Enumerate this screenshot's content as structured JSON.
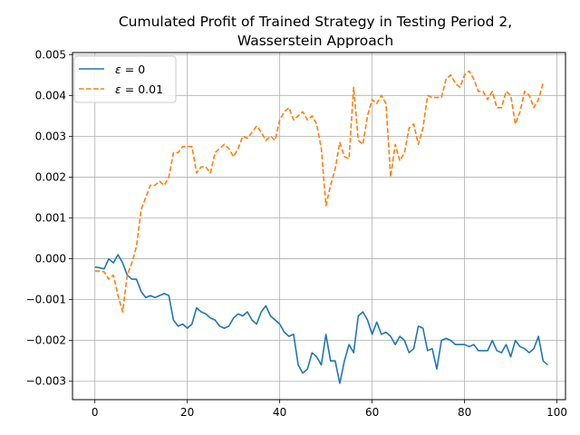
{
  "chart_data": {
    "type": "line",
    "title_line1": "Cumulated Profit of Trained Strategy in Testing Period 2,",
    "title_line2": "Wasserstein Approach",
    "xlabel": "",
    "ylabel": "",
    "xlim": [
      -4.85,
      101.85
    ],
    "ylim": [
      -0.00345,
      0.00505
    ],
    "xticks": [
      0,
      20,
      40,
      60,
      80,
      100
    ],
    "xtick_labels": [
      "0",
      "20",
      "40",
      "60",
      "80",
      "100"
    ],
    "yticks": [
      -0.003,
      -0.002,
      -0.001,
      0.0,
      0.001,
      0.002,
      0.003,
      0.004,
      0.005
    ],
    "ytick_labels": [
      "−0.003",
      "−0.002",
      "−0.001",
      "0.000",
      "0.001",
      "0.002",
      "0.003",
      "0.004",
      "0.005"
    ],
    "grid": true,
    "legend_position": "top-left",
    "series": [
      {
        "name": "ε = 0",
        "legend_prefix": "ε",
        "legend_suffix": "= 0",
        "color": "#1f77b4",
        "dash": "solid",
        "values": [
          -0.0002,
          -0.00022,
          -0.00025,
          0.0,
          -0.0001,
          0.0001,
          -0.0001,
          -0.0004,
          -0.0005,
          -0.0005,
          -0.0008,
          -0.00095,
          -0.0009,
          -0.00095,
          -0.0009,
          -0.00085,
          -0.0009,
          -0.0015,
          -0.00165,
          -0.0016,
          -0.0017,
          -0.0016,
          -0.0012,
          -0.0013,
          -0.00135,
          -0.00145,
          -0.0015,
          -0.00165,
          -0.0017,
          -0.00165,
          -0.00145,
          -0.00135,
          -0.0014,
          -0.0013,
          -0.0015,
          -0.0016,
          -0.0013,
          -0.00115,
          -0.0014,
          -0.0015,
          -0.0016,
          -0.0018,
          -0.0019,
          -0.00185,
          -0.0026,
          -0.0028,
          -0.0027,
          -0.0023,
          -0.0024,
          -0.0026,
          -0.00185,
          -0.0025,
          -0.0025,
          -0.00305,
          -0.0025,
          -0.0021,
          -0.0023,
          -0.0014,
          -0.0013,
          -0.0015,
          -0.00185,
          -0.00155,
          -0.00185,
          -0.0018,
          -0.0019,
          -0.0021,
          -0.0019,
          -0.002,
          -0.0023,
          -0.0022,
          -0.00165,
          -0.0017,
          -0.00225,
          -0.0022,
          -0.0027,
          -0.002,
          -0.00195,
          -0.002,
          -0.0021,
          -0.0021,
          -0.0021,
          -0.00215,
          -0.0021,
          -0.00225,
          -0.00225,
          -0.00225,
          -0.002,
          -0.00225,
          -0.0023,
          -0.0021,
          -0.0024,
          -0.002,
          -0.00215,
          -0.0022,
          -0.0023,
          -0.0022,
          -0.0019,
          -0.0025,
          -0.0026
        ]
      },
      {
        "name": "ε = 0.01",
        "legend_prefix": "ε",
        "legend_suffix": "= 0.01",
        "color": "#ff7f0e",
        "dash": "dashed",
        "values": [
          -0.0003,
          -0.0003,
          -0.00032,
          -0.0005,
          -0.0004,
          -0.0009,
          -0.0013,
          -0.0004,
          -0.0001,
          0.0003,
          0.0012,
          0.0015,
          0.0018,
          0.0018,
          0.0019,
          0.0018,
          0.002,
          0.0026,
          0.0026,
          0.00275,
          0.00275,
          0.00275,
          0.0021,
          0.00225,
          0.00225,
          0.0021,
          0.0026,
          0.0027,
          0.0028,
          0.0027,
          0.0025,
          0.0027,
          0.003,
          0.00295,
          0.0031,
          0.00325,
          0.0031,
          0.0029,
          0.003,
          0.0029,
          0.0034,
          0.0036,
          0.0037,
          0.0034,
          0.0035,
          0.0036,
          0.0034,
          0.0035,
          0.0033,
          0.0027,
          0.0013,
          0.0018,
          0.0022,
          0.00285,
          0.0025,
          0.00245,
          0.0042,
          0.0029,
          0.0028,
          0.0035,
          0.0039,
          0.0038,
          0.004,
          0.0038,
          0.002,
          0.0028,
          0.0024,
          0.0026,
          0.0032,
          0.0033,
          0.0028,
          0.0032,
          0.004,
          0.00395,
          0.00395,
          0.00395,
          0.0044,
          0.0045,
          0.0043,
          0.0042,
          0.0045,
          0.0046,
          0.0044,
          0.0041,
          0.0041,
          0.0039,
          0.0041,
          0.0037,
          0.0037,
          0.0041,
          0.004,
          0.0033,
          0.0036,
          0.0041,
          0.004,
          0.0037,
          0.0039,
          0.0043
        ]
      }
    ]
  }
}
